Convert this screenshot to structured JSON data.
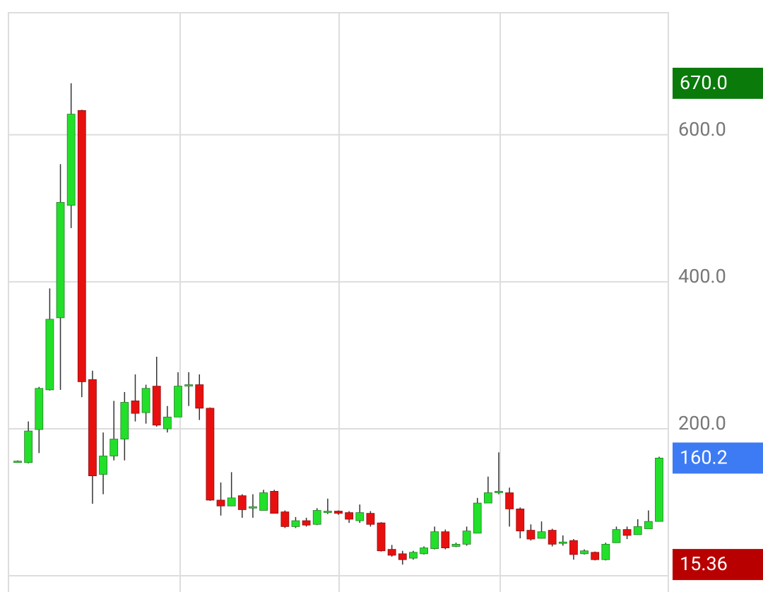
{
  "chart_data": {
    "type": "candlestick",
    "ylim": [
      -22,
      766
    ],
    "yticks": [
      {
        "value": 200,
        "label": "200.0"
      },
      {
        "value": 400,
        "label": "400.0"
      },
      {
        "value": 600,
        "label": "600.0"
      }
    ],
    "grid": true,
    "up_color": "#22e02a",
    "down_color": "#e8100f",
    "open": [
      155,
      154,
      199,
      253,
      351,
      504,
      633,
      267,
      138,
      163,
      186,
      238,
      222,
      258,
      200,
      216,
      259,
      260,
      228,
      103,
      95,
      109,
      93,
      89,
      115,
      87,
      67,
      75,
      70,
      87,
      88,
      86,
      75,
      85,
      72,
      36,
      30,
      24,
      30,
      37,
      60,
      40,
      43,
      58,
      99,
      114,
      113,
      91,
      62,
      51,
      62,
      46,
      48,
      30,
      32,
      22,
      45,
      63,
      56,
      64,
      74
    ],
    "high": [
      157,
      210,
      257,
      391,
      560,
      670,
      634,
      279,
      195,
      238,
      250,
      274,
      260,
      298,
      231,
      277,
      277,
      274,
      229,
      127,
      141,
      111,
      111,
      117,
      117,
      89,
      80,
      79,
      92,
      105,
      89,
      88,
      97,
      88,
      73,
      42,
      34,
      34,
      40,
      67,
      63,
      45,
      67,
      106,
      135,
      168,
      120,
      93,
      70,
      74,
      64,
      55,
      50,
      36,
      33,
      45,
      67,
      67,
      77,
      89,
      162
    ],
    "low": [
      154,
      153,
      167,
      252,
      253,
      473,
      243,
      98,
      111,
      157,
      157,
      210,
      207,
      203,
      195,
      216,
      231,
      212,
      102,
      82,
      95,
      79,
      79,
      89,
      85,
      65,
      65,
      67,
      69,
      84,
      83,
      72,
      72,
      67,
      33,
      26,
      15.36,
      22,
      29,
      36,
      36,
      39,
      41,
      58,
      99,
      111,
      67,
      51,
      48,
      51,
      40,
      41,
      22,
      29,
      21,
      21,
      45,
      50,
      56,
      64,
      74
    ],
    "close": [
      156,
      197,
      255,
      349,
      508,
      628,
      264,
      136,
      163,
      186,
      236,
      221,
      255,
      205,
      216,
      258,
      260,
      228,
      103,
      95,
      106,
      90,
      94,
      113,
      85,
      67,
      75,
      69,
      89,
      88,
      85,
      77,
      86,
      70,
      34,
      28,
      22,
      32,
      38,
      60,
      38,
      43,
      61,
      99,
      113,
      115,
      91,
      61,
      50,
      60,
      43,
      46,
      29,
      34,
      22,
      43,
      63,
      55,
      67,
      74,
      160.2
    ],
    "price_labels": [
      {
        "value": 670,
        "label": "670.0",
        "color": "#0a7a0a"
      },
      {
        "value": 160.2,
        "label": "160.2",
        "color": "#3d7bf5"
      },
      {
        "value": 15.36,
        "label": "15.36",
        "color": "#b80000"
      }
    ]
  }
}
